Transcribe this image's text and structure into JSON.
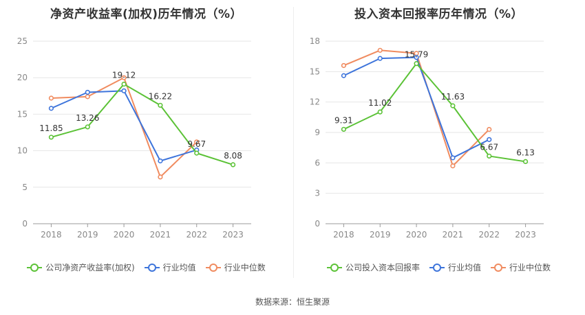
{
  "source_label": "数据来源：恒生聚源",
  "colors": {
    "company": "#5bc236",
    "industry_avg": "#3d74db",
    "industry_median": "#f08b5f",
    "grid": "#e6e6e6",
    "axis": "#999999"
  },
  "chart_data": [
    {
      "type": "line",
      "title": "净资产收益率(加权)历年情况（%）",
      "categories": [
        "2018",
        "2019",
        "2020",
        "2021",
        "2022",
        "2023"
      ],
      "ylim": [
        0,
        25
      ],
      "yticks": [
        0,
        5,
        10,
        15,
        20,
        25
      ],
      "legend_position": "bottom",
      "grid": true,
      "series": [
        {
          "name": "公司净资产收益率(加权)",
          "key": "company",
          "values": [
            11.85,
            13.26,
            19.12,
            16.22,
            9.67,
            8.08
          ],
          "labels": [
            "11.85",
            "13.26",
            "19.12",
            "16.22",
            "9.67",
            "8.08"
          ]
        },
        {
          "name": "行业均值",
          "key": "industry_avg",
          "values": [
            15.8,
            18.0,
            18.2,
            8.6,
            10.1,
            null
          ]
        },
        {
          "name": "行业中位数",
          "key": "industry_median",
          "values": [
            17.2,
            17.4,
            20.0,
            6.4,
            11.2,
            null
          ]
        }
      ]
    },
    {
      "type": "line",
      "title": "投入资本回报率历年情况（%）",
      "categories": [
        "2018",
        "2019",
        "2020",
        "2021",
        "2022",
        "2023"
      ],
      "ylim": [
        0,
        18
      ],
      "yticks": [
        0,
        3,
        6,
        9,
        12,
        15,
        18
      ],
      "legend_position": "bottom",
      "grid": true,
      "series": [
        {
          "name": "公司投入资本回报率",
          "key": "company",
          "values": [
            9.31,
            11.02,
            15.79,
            11.63,
            6.67,
            6.13
          ],
          "labels": [
            "9.31",
            "11.02",
            "15.79",
            "11.63",
            "6.67",
            "6.13"
          ]
        },
        {
          "name": "行业均值",
          "key": "industry_avg",
          "values": [
            14.6,
            16.3,
            16.4,
            6.5,
            8.3,
            null
          ]
        },
        {
          "name": "行业中位数",
          "key": "industry_median",
          "values": [
            15.6,
            17.1,
            16.8,
            5.7,
            9.3,
            null
          ]
        }
      ]
    }
  ]
}
